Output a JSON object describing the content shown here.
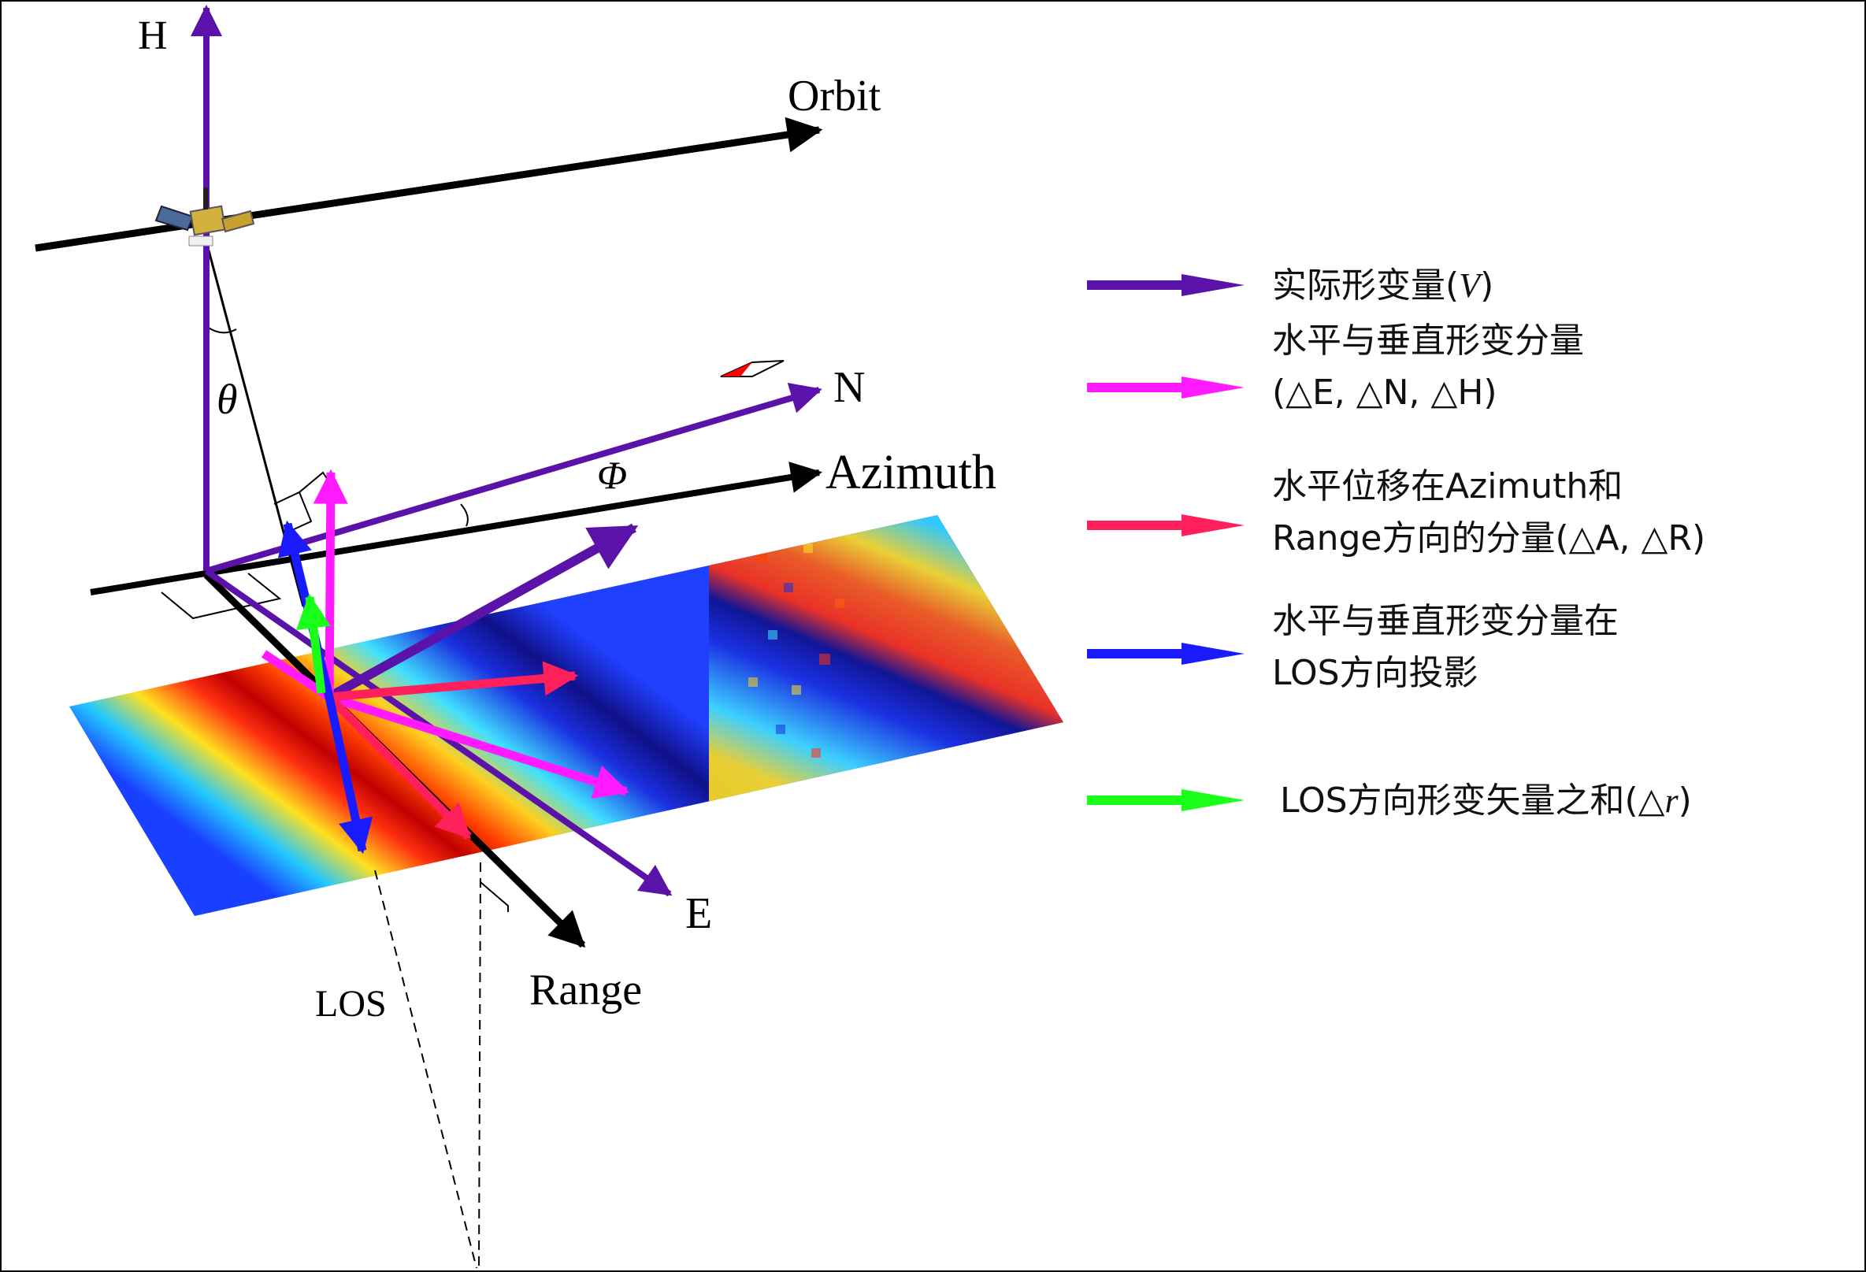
{
  "labels": {
    "H": "H",
    "orbit": "Orbit",
    "N": "N",
    "azimuth": "Azimuth",
    "E": "E",
    "range": "Range",
    "los": "LOS",
    "theta": "θ",
    "phi": "Φ"
  },
  "colors": {
    "actual": "#5b12a8",
    "components": "#ff1aff",
    "azimuth_range": "#ff1f5a",
    "los_projection": "#1a1aff",
    "los_sum": "#1aff1a"
  },
  "legend": [
    {
      "line1": "实际形变量(",
      "italic1": "V",
      "line1_end": ")",
      "line2": ""
    },
    {
      "line1": "水平与垂直形变分量",
      "line2": "(△E, △N, △H)"
    },
    {
      "line1": "水平位移在Azimuth和",
      "line2": "Range方向的分量(△A, △R)"
    },
    {
      "line1": "水平与垂直形变分量在",
      "line2": "LOS方向投影"
    },
    {
      "line1": "LOS方向形变矢量之和(△",
      "italic1": "r",
      "line1_end": ")",
      "line2": ""
    }
  ]
}
